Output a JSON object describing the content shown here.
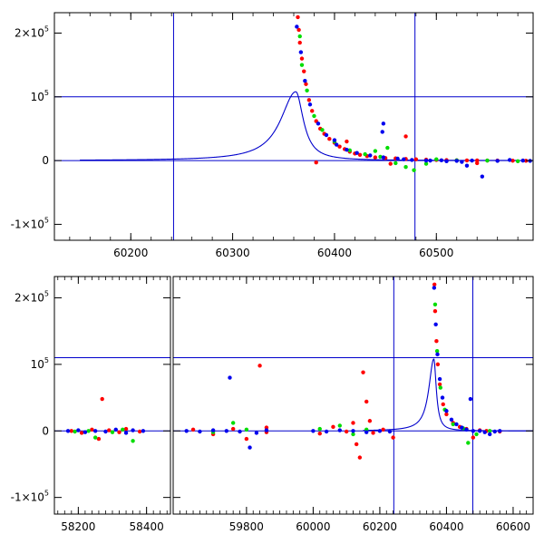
{
  "chart_data": [
    {
      "type": "scatter",
      "panel": "top",
      "xlabel": "",
      "ylabel": "",
      "xlim": [
        60125,
        60595
      ],
      "ylim": [
        -125000,
        232000
      ],
      "x_ticks": [
        "60200",
        "60300",
        "60400",
        "60500"
      ],
      "y_ticks": [
        {
          "value": 200000,
          "label": "2×10",
          "exp": "5"
        },
        {
          "value": 100000,
          "label": "10",
          "exp": "5"
        },
        {
          "value": 0,
          "label": "0",
          "exp": ""
        },
        {
          "value": -100000,
          "label": "-1×10",
          "exp": "5"
        }
      ],
      "reference_lines": {
        "horizontal": [
          0,
          100000
        ],
        "vertical": [
          60242,
          60479
        ]
      },
      "model_curve": {
        "peak_x": 60362,
        "peak_y": 108000,
        "rise_width": 18,
        "decay_width": 9
      },
      "series": [
        {
          "color": "#ff0000",
          "points": [
            [
              60364,
              225000
            ],
            [
              60365,
              205000
            ],
            [
              60366,
              185000
            ],
            [
              60368,
              160000
            ],
            [
              60370,
              140000
            ],
            [
              60372,
              120000
            ],
            [
              60375,
              95000
            ],
            [
              60378,
              78000
            ],
            [
              60382,
              62000
            ],
            [
              60386,
              50000
            ],
            [
              60390,
              42000
            ],
            [
              60395,
              34000
            ],
            [
              60400,
              28000
            ],
            [
              60405,
              22000
            ],
            [
              60410,
              18000
            ],
            [
              60415,
              14000
            ],
            [
              60420,
              11000
            ],
            [
              60425,
              9000
            ],
            [
              60432,
              7000
            ],
            [
              60440,
              5000
            ],
            [
              60450,
              4000
            ],
            [
              60460,
              3500
            ],
            [
              60470,
              2500
            ],
            [
              60480,
              2000
            ],
            [
              60490,
              1500
            ],
            [
              60500,
              1000
            ],
            [
              60510,
              800
            ],
            [
              60520,
              500
            ],
            [
              60530,
              300
            ],
            [
              60540,
              200
            ],
            [
              60550,
              100
            ],
            [
              60560,
              0
            ],
            [
              60575,
              -200
            ],
            [
              60588,
              -300
            ],
            [
              60412,
              30000
            ],
            [
              60470,
              38000
            ],
            [
              60382,
              -3000
            ],
            [
              60455,
              -5000
            ],
            [
              60540,
              -4000
            ]
          ]
        },
        {
          "color": "#00dd00",
          "points": [
            [
              60366,
              195000
            ],
            [
              60368,
              150000
            ],
            [
              60373,
              110000
            ],
            [
              60380,
              70000
            ],
            [
              60388,
              48000
            ],
            [
              60400,
              30000
            ],
            [
              60415,
              16000
            ],
            [
              60430,
              10000
            ],
            [
              60445,
              6000
            ],
            [
              60460,
              -4000
            ],
            [
              60478,
              -15000
            ],
            [
              60490,
              -5000
            ],
            [
              60500,
              2000
            ],
            [
              60520,
              500
            ],
            [
              60550,
              0
            ],
            [
              60580,
              -1000
            ],
            [
              60452,
              20000
            ],
            [
              60440,
              15000
            ],
            [
              60470,
              -10000
            ]
          ]
        },
        {
          "color": "#0000ee",
          "points": [
            [
              60363,
              210000
            ],
            [
              60367,
              170000
            ],
            [
              60371,
              125000
            ],
            [
              60376,
              88000
            ],
            [
              60384,
              58000
            ],
            [
              60392,
              40000
            ],
            [
              60402,
              25000
            ],
            [
              60412,
              17000
            ],
            [
              60422,
              12000
            ],
            [
              60435,
              8000
            ],
            [
              60448,
              5000
            ],
            [
              60462,
              3000
            ],
            [
              60476,
              1000
            ],
            [
              60490,
              0
            ],
            [
              60505,
              500
            ],
            [
              60520,
              -500
            ],
            [
              60535,
              0
            ],
            [
              60545,
              -25000
            ],
            [
              60560,
              -500
            ],
            [
              60572,
              1000
            ],
            [
              60585,
              0
            ],
            [
              60592,
              -500
            ],
            [
              60448,
              58000
            ],
            [
              60447,
              45000
            ],
            [
              60400,
              32000
            ],
            [
              60494,
              0
            ],
            [
              60510,
              -1000
            ],
            [
              60525,
              -2000
            ],
            [
              60468,
              2000
            ],
            [
              60530,
              -8000
            ]
          ]
        }
      ]
    },
    {
      "type": "scatter",
      "panel": "bottom",
      "xlabel": "",
      "ylabel": "",
      "ylim": [
        -125000,
        232000
      ],
      "segments": [
        {
          "xlim": [
            58130,
            58470
          ],
          "x_ticks": [
            "58200",
            "58400"
          ]
        },
        {
          "xlim": [
            59580,
            60660
          ],
          "x_ticks": [
            "59800",
            "60000",
            "60200",
            "60400",
            "60600"
          ]
        }
      ],
      "y_ticks": [
        {
          "value": 200000,
          "label": "2×10",
          "exp": "5"
        },
        {
          "value": 100000,
          "label": "10",
          "exp": "5"
        },
        {
          "value": 0,
          "label": "0",
          "exp": ""
        },
        {
          "value": -100000,
          "label": "-1×10",
          "exp": "5"
        }
      ],
      "reference_lines": {
        "horizontal": [
          0,
          110000
        ],
        "vertical": [
          60242,
          60479
        ]
      },
      "model_curve": {
        "peak_x": 60362,
        "peak_y": 108000,
        "rise_width": 18,
        "decay_width": 9
      },
      "series": [
        {
          "color": "#ff0000",
          "points": [
            [
              58180,
              0
            ],
            [
              58210,
              -3000
            ],
            [
              58240,
              2000
            ],
            [
              58260,
              -12000
            ],
            [
              58270,
              48000
            ],
            [
              58290,
              1000
            ],
            [
              58320,
              -2000
            ],
            [
              58340,
              3000
            ],
            [
              58380,
              -1000
            ],
            [
              59640,
              2000
            ],
            [
              59700,
              -5000
            ],
            [
              59760,
              3000
            ],
            [
              59800,
              -12000
            ],
            [
              59840,
              98000
            ],
            [
              59860,
              -2000
            ],
            [
              59860,
              5000
            ],
            [
              60020,
              -4000
            ],
            [
              60060,
              6000
            ],
            [
              60100,
              -1000
            ],
            [
              60120,
              12000
            ],
            [
              60130,
              -20000
            ],
            [
              60140,
              -40000
            ],
            [
              60150,
              88000
            ],
            [
              60160,
              44000
            ],
            [
              60170,
              15000
            ],
            [
              60180,
              -3000
            ],
            [
              60210,
              2000
            ],
            [
              60240,
              -10000
            ],
            [
              60364,
              220000
            ],
            [
              60366,
              180000
            ],
            [
              60370,
              135000
            ],
            [
              60374,
              100000
            ],
            [
              60380,
              70000
            ],
            [
              60390,
              40000
            ],
            [
              60400,
              25000
            ],
            [
              60420,
              12000
            ],
            [
              60440,
              6000
            ],
            [
              60460,
              3000
            ],
            [
              60480,
              -10000
            ],
            [
              60500,
              1000
            ],
            [
              60520,
              0
            ],
            [
              60560,
              -1000
            ]
          ]
        },
        {
          "color": "#00dd00",
          "points": [
            [
              58190,
              -1000
            ],
            [
              58230,
              0
            ],
            [
              58250,
              -10000
            ],
            [
              58300,
              -2000
            ],
            [
              58330,
              2000
            ],
            [
              58360,
              -15000
            ],
            [
              59700,
              -2000
            ],
            [
              59760,
              12000
            ],
            [
              59800,
              2000
            ],
            [
              60020,
              3000
            ],
            [
              60080,
              8000
            ],
            [
              60120,
              -5000
            ],
            [
              60160,
              2000
            ],
            [
              60366,
              190000
            ],
            [
              60372,
              120000
            ],
            [
              60382,
              65000
            ],
            [
              60395,
              32000
            ],
            [
              60420,
              10000
            ],
            [
              60450,
              4000
            ],
            [
              60465,
              -18000
            ],
            [
              60490,
              -5000
            ],
            [
              60530,
              0
            ]
          ]
        },
        {
          "color": "#0000ee",
          "points": [
            [
              58170,
              0
            ],
            [
              58200,
              1000
            ],
            [
              58220,
              -2000
            ],
            [
              58250,
              0
            ],
            [
              58280,
              -1000
            ],
            [
              58310,
              2000
            ],
            [
              58340,
              -3000
            ],
            [
              58360,
              1000
            ],
            [
              58390,
              0
            ],
            [
              59620,
              0
            ],
            [
              59660,
              -1000
            ],
            [
              59700,
              1000
            ],
            [
              59740,
              0
            ],
            [
              59750,
              80000
            ],
            [
              59780,
              -1000
            ],
            [
              59810,
              -25000
            ],
            [
              59830,
              -3000
            ],
            [
              59860,
              1000
            ],
            [
              60000,
              0
            ],
            [
              60040,
              -1000
            ],
            [
              60080,
              1000
            ],
            [
              60120,
              0
            ],
            [
              60160,
              -2000
            ],
            [
              60200,
              0
            ],
            [
              60230,
              -1000
            ],
            [
              60363,
              215000
            ],
            [
              60368,
              160000
            ],
            [
              60373,
              115000
            ],
            [
              60380,
              78000
            ],
            [
              60388,
              50000
            ],
            [
              60400,
              30000
            ],
            [
              60415,
              17000
            ],
            [
              60430,
              10000
            ],
            [
              60446,
              5000
            ],
            [
              60460,
              2000
            ],
            [
              60472,
              48000
            ],
            [
              60480,
              0
            ],
            [
              60500,
              0
            ],
            [
              60515,
              -2000
            ],
            [
              60530,
              -5000
            ],
            [
              60545,
              -1000
            ],
            [
              60560,
              0
            ]
          ]
        }
      ]
    }
  ]
}
